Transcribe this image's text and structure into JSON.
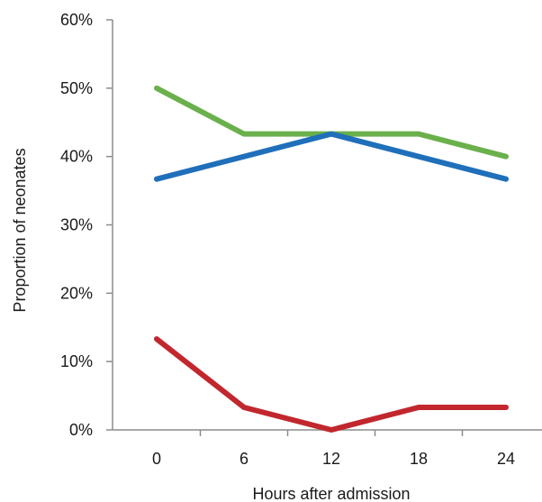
{
  "chart_data": {
    "type": "line",
    "xlabel": "Hours after admission",
    "ylabel": "Proportion of neonates",
    "categories": [
      "0",
      "6",
      "12",
      "18",
      "24"
    ],
    "x": [
      0,
      6,
      12,
      18,
      24
    ],
    "ylim": [
      0,
      0.6
    ],
    "yticks": [
      0,
      0.1,
      0.2,
      0.3,
      0.4,
      0.5,
      0.6
    ],
    "ytick_labels": [
      "0%",
      "10%",
      "20%",
      "30%",
      "40%",
      "50%",
      "60%"
    ],
    "legend": "none",
    "grid": false,
    "series": [
      {
        "color": "#6ab04c",
        "values": [
          0.5,
          0.433,
          0.433,
          0.433,
          0.4
        ]
      },
      {
        "color": "#1f6fba",
        "values": [
          0.367,
          0.4,
          0.433,
          0.4,
          0.367
        ]
      },
      {
        "color": "#c1272d",
        "values": [
          0.133,
          0.033,
          0.0,
          0.033,
          0.033
        ]
      }
    ]
  }
}
